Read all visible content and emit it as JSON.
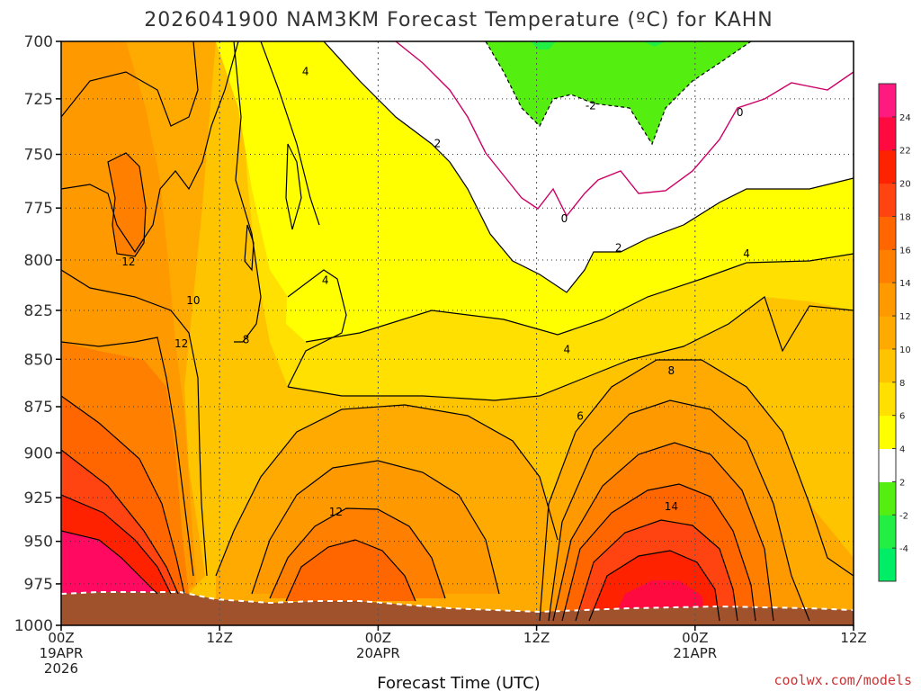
{
  "chart_data": {
    "type": "heatmap",
    "title": "2026041900 NAM3KM Forecast Temperature (ºC) for KAHN",
    "xlabel": "Forecast Time (UTC)",
    "ylabel": "",
    "credit": "coolwx.com/models",
    "y_axis": {
      "ticks": [
        "700",
        "725",
        "750",
        "775",
        "800",
        "825",
        "850",
        "875",
        "900",
        "925",
        "950",
        "975",
        "1000"
      ],
      "values": [
        700,
        725,
        750,
        775,
        800,
        825,
        850,
        875,
        900,
        925,
        950,
        975,
        1000
      ],
      "range": [
        700,
        1000
      ],
      "scale": "log",
      "grid": true
    },
    "x_axis": {
      "hours": [
        0,
        12,
        24,
        36,
        48,
        60
      ],
      "tick_lines": [
        [
          "00Z",
          "19APR",
          "2026"
        ],
        [
          "12Z",
          "",
          ""
        ],
        [
          "00Z",
          "20APR",
          ""
        ],
        [
          "12Z",
          "",
          ""
        ],
        [
          "00Z",
          "21APR",
          ""
        ],
        [
          "12Z",
          "",
          ""
        ]
      ],
      "range": [
        0,
        60
      ],
      "grid": true
    },
    "colorbar": {
      "levels": [
        -6,
        -4,
        -2,
        2,
        4,
        6,
        8,
        10,
        12,
        14,
        16,
        18,
        20,
        22,
        24,
        26
      ],
      "tick_labels": [
        "-4",
        "-2",
        "2",
        "4",
        "6",
        "8",
        "10",
        "12",
        "14",
        "16",
        "18",
        "20",
        "22",
        "24"
      ],
      "colors": [
        "#00ee66",
        "#22ee44",
        "#55ee11",
        "#ffffff",
        "#ffff00",
        "#ffe000",
        "#ffc400",
        "#ffaa00",
        "#ff9900",
        "#ff8000",
        "#ff6600",
        "#ff4411",
        "#ff2200",
        "#ff0a40",
        "#ff1a80"
      ]
    },
    "contour_labels": [
      {
        "text": "4",
        "h": 18.5,
        "p": 713
      },
      {
        "text": "2",
        "h": 28.5,
        "p": 745
      },
      {
        "text": "-2",
        "h": 40.1,
        "p": 728
      },
      {
        "text": "0",
        "h": 51.4,
        "p": 731
      },
      {
        "text": "0",
        "h": 38.1,
        "p": 780
      },
      {
        "text": "2",
        "h": 42.2,
        "p": 794
      },
      {
        "text": "4",
        "h": 51.9,
        "p": 797
      },
      {
        "text": "12",
        "h": 5.1,
        "p": 801
      },
      {
        "text": "4",
        "h": 20.0,
        "p": 810
      },
      {
        "text": "10",
        "h": 10.0,
        "p": 820
      },
      {
        "text": "8",
        "h": 14.0,
        "p": 840
      },
      {
        "text": "12",
        "h": 9.1,
        "p": 842
      },
      {
        "text": "4",
        "h": 38.3,
        "p": 845
      },
      {
        "text": "8",
        "h": 46.2,
        "p": 856
      },
      {
        "text": "6",
        "h": 39.3,
        "p": 880
      },
      {
        "text": "14",
        "h": 46.2,
        "p": 930
      },
      {
        "text": "12",
        "h": 20.8,
        "p": 933
      }
    ],
    "fields": [
      {
        "name": "cold-pocket (-2 to 0)",
        "color_level": "-2"
      },
      {
        "name": "terrain (below ground)",
        "color": "#a0522d"
      }
    ]
  }
}
